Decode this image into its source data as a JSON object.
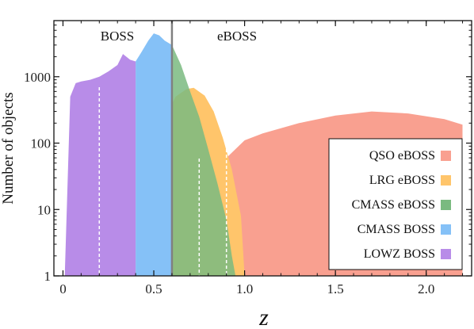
{
  "chart_data": {
    "type": "area",
    "xlabel": "z",
    "ylabel": "Number of objects",
    "xlim": [
      -0.05,
      2.25
    ],
    "ylim": [
      1,
      7000
    ],
    "yscale": "log",
    "xticks": [
      0,
      0.5,
      1.0,
      1.5,
      2.0
    ],
    "xtick_labels": [
      "0",
      "0.5",
      "1.0",
      "1.5",
      "2.0"
    ],
    "yticks": [
      1,
      10,
      100,
      1000
    ],
    "ytick_labels": [
      "1",
      "10",
      "100",
      "1000"
    ],
    "grid": false,
    "legend_position": "lower-right",
    "annotations": [
      {
        "text": "BOSS",
        "x": 0.2,
        "y": 4500
      },
      {
        "text": "eBOSS",
        "x": 0.95,
        "y": 4500
      }
    ],
    "divider": {
      "x": 0.6
    },
    "dashed_cuts": [
      0.2,
      0.75,
      0.9
    ],
    "series": [
      {
        "name": "QSO eBOSS",
        "color": "#f9a090",
        "points": [
          [
            0.8,
            1
          ],
          [
            0.8,
            15
          ],
          [
            0.9,
            60
          ],
          [
            1.0,
            110
          ],
          [
            1.1,
            140
          ],
          [
            1.3,
            200
          ],
          [
            1.5,
            260
          ],
          [
            1.7,
            300
          ],
          [
            1.9,
            280
          ],
          [
            2.1,
            230
          ],
          [
            2.2,
            190
          ],
          [
            2.2,
            1
          ]
        ]
      },
      {
        "name": "LRG eBOSS",
        "color": "#ffc56b",
        "points": [
          [
            0.58,
            1
          ],
          [
            0.58,
            300
          ],
          [
            0.62,
            500
          ],
          [
            0.68,
            650
          ],
          [
            0.72,
            680
          ],
          [
            0.78,
            520
          ],
          [
            0.83,
            300
          ],
          [
            0.88,
            120
          ],
          [
            0.93,
            40
          ],
          [
            0.98,
            8
          ],
          [
            1.0,
            1
          ]
        ]
      },
      {
        "name": "CMASS eBOSS",
        "color": "#7aba80",
        "points": [
          [
            0.6,
            1
          ],
          [
            0.6,
            3000
          ],
          [
            0.65,
            1500
          ],
          [
            0.7,
            600
          ],
          [
            0.75,
            250
          ],
          [
            0.8,
            80
          ],
          [
            0.85,
            25
          ],
          [
            0.9,
            7
          ],
          [
            0.93,
            2
          ],
          [
            0.95,
            1
          ]
        ]
      },
      {
        "name": "CMASS BOSS",
        "color": "#85c1f7",
        "points": [
          [
            0.4,
            1
          ],
          [
            0.4,
            1700
          ],
          [
            0.43,
            2300
          ],
          [
            0.47,
            3500
          ],
          [
            0.5,
            4500
          ],
          [
            0.53,
            4200
          ],
          [
            0.56,
            3500
          ],
          [
            0.6,
            3000
          ],
          [
            0.6,
            1
          ]
        ]
      },
      {
        "name": "LOWZ BOSS",
        "color": "#b88ce8",
        "points": [
          [
            0.01,
            1
          ],
          [
            0.04,
            500
          ],
          [
            0.07,
            800
          ],
          [
            0.1,
            850
          ],
          [
            0.15,
            900
          ],
          [
            0.2,
            1000
          ],
          [
            0.25,
            1200
          ],
          [
            0.3,
            1500
          ],
          [
            0.33,
            2200
          ],
          [
            0.37,
            1800
          ],
          [
            0.4,
            1700
          ],
          [
            0.4,
            1
          ]
        ]
      }
    ]
  }
}
